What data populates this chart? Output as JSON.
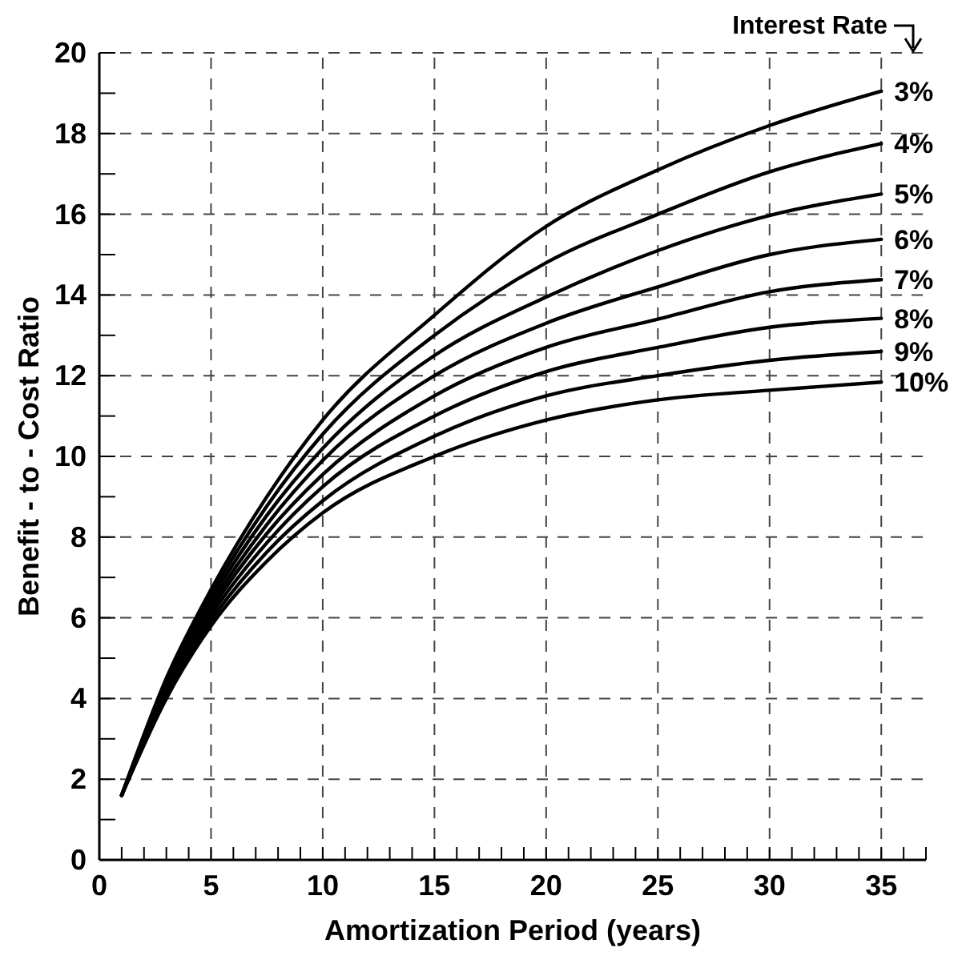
{
  "chart_data": {
    "type": "line",
    "xlabel": "Amortization Period (years)",
    "ylabel": "Benefit - to - Cost Ratio",
    "legend_title": "Interest Rate",
    "x": [
      1,
      3,
      5,
      7.5,
      10,
      15,
      20,
      25,
      30,
      35
    ],
    "xlim": [
      0,
      37
    ],
    "ylim": [
      0,
      20
    ],
    "xticks": [
      0,
      {
        "value": 1,
        "label": null
      },
      {
        "value": 2,
        "label": null
      },
      {
        "value": 3,
        "label": null
      },
      {
        "value": 4,
        "label": null
      },
      5,
      {
        "value": 6,
        "label": null
      },
      {
        "value": 7,
        "label": null
      },
      {
        "value": 8,
        "label": null
      },
      {
        "value": 9,
        "label": null
      },
      10,
      {
        "value": 11,
        "label": null
      },
      {
        "value": 12,
        "label": null
      },
      {
        "value": 13,
        "label": null
      },
      {
        "value": 14,
        "label": null
      },
      15,
      {
        "value": 16,
        "label": null
      },
      {
        "value": 17,
        "label": null
      },
      {
        "value": 18,
        "label": null
      },
      {
        "value": 19,
        "label": null
      },
      20,
      {
        "value": 21,
        "label": null
      },
      {
        "value": 22,
        "label": null
      },
      {
        "value": 23,
        "label": null
      },
      {
        "value": 24,
        "label": null
      },
      25,
      {
        "value": 26,
        "label": null
      },
      {
        "value": 27,
        "label": null
      },
      {
        "value": 28,
        "label": null
      },
      {
        "value": 29,
        "label": null
      },
      30,
      {
        "value": 31,
        "label": null
      },
      {
        "value": 32,
        "label": null
      },
      {
        "value": 33,
        "label": null
      },
      {
        "value": 34,
        "label": null
      },
      35,
      {
        "value": 36,
        "label": null
      },
      {
        "value": 37,
        "label": null
      }
    ],
    "yticks": [
      0,
      {
        "value": 1,
        "label": null
      },
      2,
      {
        "value": 3,
        "label": null
      },
      4,
      {
        "value": 5,
        "label": null
      },
      6,
      {
        "value": 7,
        "label": null
      },
      8,
      {
        "value": 9,
        "label": null
      },
      10,
      {
        "value": 11,
        "label": null
      },
      12,
      {
        "value": 13,
        "label": null
      },
      14,
      {
        "value": 15,
        "label": null
      },
      16,
      {
        "value": 17,
        "label": null
      },
      18,
      {
        "value": 19,
        "label": null
      },
      20
    ],
    "grid": true,
    "legend": "right",
    "marker": "none",
    "line_style": "solid",
    "series": [
      {
        "name": "3%",
        "color": "#000000",
        "values": [
          1.6,
          4.5,
          6.7,
          9.0,
          10.9,
          13.5,
          15.7,
          17.1,
          18.2,
          19.05
        ]
      },
      {
        "name": "4%",
        "color": "#000000",
        "values": [
          1.6,
          4.43,
          6.57,
          8.77,
          10.55,
          13.0,
          14.8,
          16.0,
          17.05,
          17.75
        ]
      },
      {
        "name": "5%",
        "color": "#000000",
        "values": [
          1.6,
          4.36,
          6.44,
          8.54,
          10.2,
          12.5,
          13.95,
          15.1,
          15.97,
          16.5
        ]
      },
      {
        "name": "6%",
        "color": "#000000",
        "values": [
          1.6,
          4.29,
          6.31,
          8.31,
          9.9,
          12.0,
          13.3,
          14.2,
          15.0,
          15.38
        ]
      },
      {
        "name": "7%",
        "color": "#000000",
        "values": [
          1.6,
          4.21,
          6.19,
          8.09,
          9.55,
          11.5,
          12.7,
          13.4,
          14.08,
          14.38
        ]
      },
      {
        "name": "8%",
        "color": "#000000",
        "values": [
          1.6,
          4.14,
          6.06,
          7.86,
          9.25,
          11.0,
          12.1,
          12.7,
          13.2,
          13.42
        ]
      },
      {
        "name": "9%",
        "color": "#000000",
        "values": [
          1.6,
          4.07,
          5.93,
          7.63,
          8.9,
          10.5,
          11.5,
          12.0,
          12.38,
          12.6
        ]
      },
      {
        "name": "10%",
        "color": "#000000",
        "values": [
          1.6,
          4.0,
          5.8,
          7.4,
          8.6,
          10.0,
          10.9,
          11.4,
          11.64,
          11.84
        ]
      }
    ]
  }
}
